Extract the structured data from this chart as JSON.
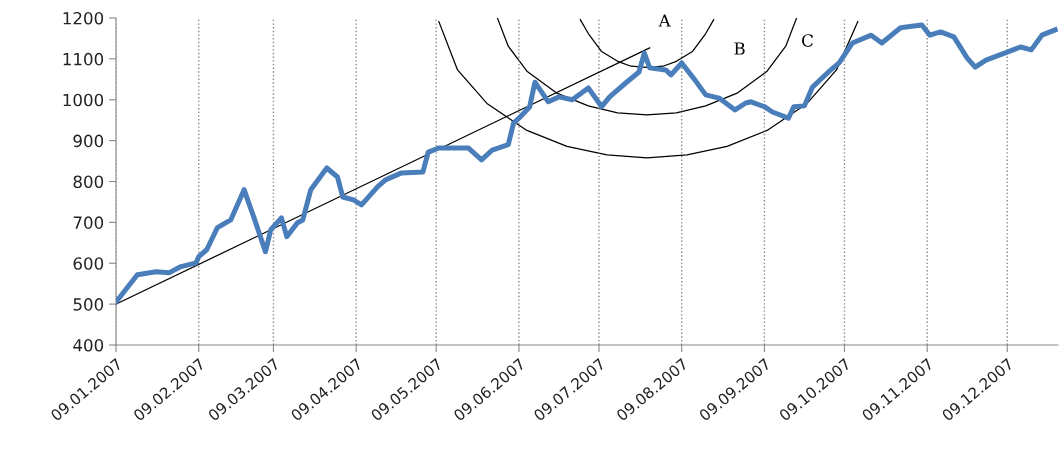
{
  "chart_data": {
    "type": "line",
    "xlim": [
      "2007-01-09",
      "2007-12-28"
    ],
    "ylim": [
      400,
      1200
    ],
    "yticks": [
      400,
      500,
      600,
      700,
      800,
      900,
      1000,
      1100,
      1200
    ],
    "xticks": [
      {
        "value": "2007-01-09",
        "label": "09.01.2007"
      },
      {
        "value": "2007-02-09",
        "label": "09.02.2007"
      },
      {
        "value": "2007-03-09",
        "label": "09.03.2007"
      },
      {
        "value": "2007-04-09",
        "label": "09.04.2007"
      },
      {
        "value": "2007-05-09",
        "label": "09.05.2007"
      },
      {
        "value": "2007-06-09",
        "label": "09.06.2007"
      },
      {
        "value": "2007-07-09",
        "label": "09.07.2007"
      },
      {
        "value": "2007-08-09",
        "label": "09.08.2007"
      },
      {
        "value": "2007-09-09",
        "label": "09.09.2007"
      },
      {
        "value": "2007-10-09",
        "label": "09.10.2007"
      },
      {
        "value": "2007-11-09",
        "label": "09.11.2007"
      },
      {
        "value": "2007-12-09",
        "label": "09.12.2007"
      }
    ],
    "grid": "x",
    "marker": "none",
    "line_style": "solid",
    "series": [
      {
        "color": "#4a7ebb",
        "x": [
          "2007-01-09",
          "2007-01-17",
          "2007-01-24",
          "2007-01-29",
          "2007-02-02",
          "2007-02-08",
          "2007-02-09",
          "2007-02-12",
          "2007-02-16",
          "2007-02-21",
          "2007-02-26",
          "2007-03-02",
          "2007-03-06",
          "2007-03-08",
          "2007-03-12",
          "2007-03-14",
          "2007-03-18",
          "2007-03-20",
          "2007-03-23",
          "2007-03-29",
          "2007-04-02",
          "2007-04-04",
          "2007-04-08",
          "2007-04-11",
          "2007-04-17",
          "2007-04-20",
          "2007-04-26",
          "2007-05-04",
          "2007-05-06",
          "2007-05-10",
          "2007-05-21",
          "2007-05-26",
          "2007-05-30",
          "2007-06-05",
          "2007-06-07",
          "2007-06-09",
          "2007-06-13",
          "2007-06-15",
          "2007-06-20",
          "2007-06-24",
          "2007-06-29",
          "2007-07-05",
          "2007-07-10",
          "2007-07-13",
          "2007-07-19",
          "2007-07-24",
          "2007-07-26",
          "2007-07-28",
          "2007-08-03",
          "2007-08-05",
          "2007-08-09",
          "2007-08-14",
          "2007-08-18",
          "2007-08-23",
          "2007-08-29",
          "2007-09-02",
          "2007-09-04",
          "2007-09-09",
          "2007-09-12",
          "2007-09-18",
          "2007-09-20",
          "2007-09-24",
          "2007-09-27",
          "2007-10-03",
          "2007-10-07",
          "2007-10-12",
          "2007-10-19",
          "2007-10-23",
          "2007-10-30",
          "2007-11-07",
          "2007-11-10",
          "2007-11-14",
          "2007-11-19",
          "2007-11-24",
          "2007-11-27",
          "2007-12-01",
          "2007-12-08",
          "2007-12-14",
          "2007-12-18",
          "2007-12-22",
          "2007-12-27"
        ],
        "values": [
          505,
          572,
          579,
          577,
          591,
          601,
          616,
          633,
          687,
          706,
          780,
          706,
          628,
          682,
          711,
          665,
          699,
          706,
          780,
          833,
          811,
          762,
          755,
          743,
          787,
          804,
          821,
          823,
          872,
          882,
          882,
          853,
          877,
          890,
          943,
          955,
          982,
          1043,
          995,
          1007,
          1000,
          1029,
          983,
          1007,
          1041,
          1068,
          1114,
          1078,
          1073,
          1061,
          1090,
          1048,
          1012,
          1004,
          975,
          992,
          995,
          983,
          970,
          955,
          983,
          985,
          1031,
          1068,
          1090,
          1139,
          1158,
          1139,
          1176,
          1183,
          1158,
          1166,
          1154,
          1102,
          1080,
          1097,
          1114,
          1129,
          1122,
          1158,
          1171
        ]
      },
      {
        "type": "line",
        "color": "#000000",
        "x": [
          "2007-01-09",
          "2007-07-28"
        ],
        "values": [
          500,
          1127
        ]
      },
      {
        "type": "line",
        "color": "#000000",
        "x": [
          "2007-07-02",
          "2007-07-05",
          "2007-07-10",
          "2007-07-16",
          "2007-07-21",
          "2007-07-27",
          "2007-08-02",
          "2007-08-07",
          "2007-08-13",
          "2007-08-18",
          "2007-08-21"
        ],
        "values": [
          1196,
          1162,
          1118,
          1094,
          1082,
          1079,
          1082,
          1094,
          1118,
          1162,
          1196
        ]
      },
      {
        "type": "line",
        "color": "#000000",
        "x": [
          "2007-06-01",
          "2007-06-05",
          "2007-06-12",
          "2007-06-23",
          "2007-07-05",
          "2007-07-16",
          "2007-07-27",
          "2007-08-07",
          "2007-08-18",
          "2007-08-30",
          "2007-09-10",
          "2007-09-17",
          "2007-09-21"
        ],
        "values": [
          1199,
          1131,
          1070,
          1017,
          985,
          968,
          963,
          968,
          985,
          1017,
          1070,
          1131,
          1199
        ]
      },
      {
        "type": "line",
        "color": "#000000",
        "x": [
          "2007-05-10",
          "2007-05-17",
          "2007-05-28",
          "2007-06-12",
          "2007-06-27",
          "2007-07-12",
          "2007-07-27",
          "2007-08-11",
          "2007-08-26",
          "2007-09-10",
          "2007-09-25",
          "2007-10-06",
          "2007-10-14"
        ],
        "values": [
          1191,
          1073,
          991,
          925,
          886,
          865,
          858,
          865,
          886,
          925,
          991,
          1073,
          1191
        ]
      }
    ],
    "annotations": [
      "A",
      "B",
      "C"
    ]
  }
}
